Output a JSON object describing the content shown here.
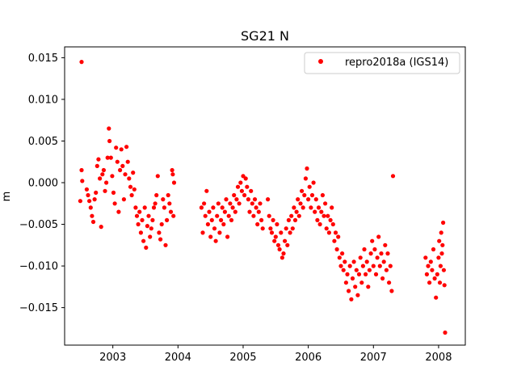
{
  "chart_data": {
    "type": "scatter",
    "title": "SG21 N",
    "xlabel": "",
    "ylabel": "m",
    "x_unit": "decimal year",
    "xlim": [
      2002.26,
      2008.41
    ],
    "ylim": [
      -0.0195,
      0.0163
    ],
    "x_ticks": [
      2003,
      2004,
      2005,
      2006,
      2007,
      2008
    ],
    "x_tick_labels": [
      "2003",
      "2004",
      "2005",
      "2006",
      "2007",
      "2008"
    ],
    "y_ticks": [
      0.015,
      0.01,
      0.005,
      0.0,
      -0.005,
      -0.01,
      -0.015
    ],
    "y_tick_labels": [
      "0.015",
      "0.010",
      "0.005",
      "0.000",
      "−0.005",
      "−0.010",
      "−0.015"
    ],
    "grid": false,
    "legend_position": "top-right",
    "series": [
      {
        "name": "repro2018a (IGS14)",
        "color": "#ff0000",
        "marker": "circle",
        "points": [
          [
            2002.52,
            0.0145
          ],
          [
            2002.5,
            -0.0022
          ],
          [
            2002.52,
            0.0015
          ],
          [
            2002.53,
            0.0002
          ],
          [
            2002.6,
            -0.0008
          ],
          [
            2002.62,
            -0.0015
          ],
          [
            2002.64,
            -0.0022
          ],
          [
            2002.66,
            -0.003
          ],
          [
            2002.68,
            -0.004
          ],
          [
            2002.7,
            -0.0047
          ],
          [
            2002.72,
            -0.002
          ],
          [
            2002.74,
            -0.0012
          ],
          [
            2002.76,
            0.002
          ],
          [
            2002.78,
            0.0028
          ],
          [
            2002.8,
            0.0005
          ],
          [
            2002.82,
            -0.0053
          ],
          [
            2002.84,
            0.001
          ],
          [
            2002.86,
            0.0015
          ],
          [
            2002.88,
            -0.001
          ],
          [
            2002.9,
            0.0
          ],
          [
            2002.92,
            0.003
          ],
          [
            2002.94,
            0.0065
          ],
          [
            2002.95,
            0.005
          ],
          [
            2002.97,
            0.003
          ],
          [
            2002.99,
            0.0008
          ],
          [
            2003.01,
            -0.0012
          ],
          [
            2003.03,
            -0.0025
          ],
          [
            2003.05,
            0.0042
          ],
          [
            2003.07,
            0.0025
          ],
          [
            2003.09,
            -0.0035
          ],
          [
            2003.11,
            0.0015
          ],
          [
            2003.13,
            0.004
          ],
          [
            2003.15,
            0.002
          ],
          [
            2003.17,
            -0.002
          ],
          [
            2003.19,
            0.001
          ],
          [
            2003.21,
            0.0043
          ],
          [
            2003.23,
            0.0025
          ],
          [
            2003.25,
            0.0005
          ],
          [
            2003.27,
            -0.0005
          ],
          [
            2003.29,
            -0.0015
          ],
          [
            2003.31,
            0.0012
          ],
          [
            2003.33,
            -0.0008
          ],
          [
            2003.35,
            -0.003
          ],
          [
            2003.37,
            -0.004
          ],
          [
            2003.39,
            -0.005
          ],
          [
            2003.41,
            -0.0035
          ],
          [
            2003.43,
            -0.006
          ],
          [
            2003.45,
            -0.0045
          ],
          [
            2003.47,
            -0.007
          ],
          [
            2003.49,
            -0.003
          ],
          [
            2003.51,
            -0.0078
          ],
          [
            2003.53,
            -0.0052
          ],
          [
            2003.55,
            -0.004
          ],
          [
            2003.57,
            -0.0065
          ],
          [
            2003.59,
            -0.0055
          ],
          [
            2003.61,
            -0.0045
          ],
          [
            2003.63,
            -0.003
          ],
          [
            2003.65,
            -0.0025
          ],
          [
            2003.67,
            -0.0015
          ],
          [
            2003.69,
            0.0008
          ],
          [
            2003.71,
            -0.006
          ],
          [
            2003.73,
            -0.0068
          ],
          [
            2003.75,
            -0.005
          ],
          [
            2003.77,
            -0.002
          ],
          [
            2003.79,
            -0.003
          ],
          [
            2003.81,
            -0.0075
          ],
          [
            2003.83,
            -0.0045
          ],
          [
            2003.85,
            -0.0015
          ],
          [
            2003.87,
            -0.0025
          ],
          [
            2003.89,
            -0.0035
          ],
          [
            2003.91,
            0.0015
          ],
          [
            2003.92,
            0.001
          ],
          [
            2003.93,
            -0.004
          ],
          [
            2003.94,
            0.0
          ],
          [
            2004.36,
            -0.003
          ],
          [
            2004.38,
            -0.006
          ],
          [
            2004.4,
            -0.0025
          ],
          [
            2004.42,
            -0.004
          ],
          [
            2004.44,
            -0.001
          ],
          [
            2004.46,
            -0.005
          ],
          [
            2004.48,
            -0.0035
          ],
          [
            2004.5,
            -0.0065
          ],
          [
            2004.52,
            -0.0045
          ],
          [
            2004.54,
            -0.003
          ],
          [
            2004.56,
            -0.0055
          ],
          [
            2004.58,
            -0.007
          ],
          [
            2004.6,
            -0.004
          ],
          [
            2004.62,
            -0.0025
          ],
          [
            2004.64,
            -0.006
          ],
          [
            2004.66,
            -0.0045
          ],
          [
            2004.68,
            -0.003
          ],
          [
            2004.7,
            -0.005
          ],
          [
            2004.72,
            -0.0035
          ],
          [
            2004.74,
            -0.002
          ],
          [
            2004.76,
            -0.0065
          ],
          [
            2004.78,
            -0.004
          ],
          [
            2004.8,
            -0.0025
          ],
          [
            2004.82,
            -0.0045
          ],
          [
            2004.84,
            -0.003
          ],
          [
            2004.86,
            -0.0015
          ],
          [
            2004.88,
            -0.0035
          ],
          [
            2004.9,
            -0.002
          ],
          [
            2004.92,
            -0.0005
          ],
          [
            2004.94,
            -0.0025
          ],
          [
            2004.96,
            0.0
          ],
          [
            2004.98,
            -0.001
          ],
          [
            2005.0,
            0.0008
          ],
          [
            2005.02,
            -0.0015
          ],
          [
            2005.04,
            0.0005
          ],
          [
            2005.06,
            -0.0005
          ],
          [
            2005.08,
            -0.002
          ],
          [
            2005.1,
            -0.0035
          ],
          [
            2005.12,
            -0.001
          ],
          [
            2005.14,
            -0.0025
          ],
          [
            2005.16,
            -0.004
          ],
          [
            2005.18,
            -0.002
          ],
          [
            2005.2,
            -0.003
          ],
          [
            2005.22,
            -0.005
          ],
          [
            2005.24,
            -0.0035
          ],
          [
            2005.26,
            -0.0025
          ],
          [
            2005.28,
            -0.0045
          ],
          [
            2005.3,
            -0.0055
          ],
          [
            2005.38,
            -0.002
          ],
          [
            2005.4,
            -0.004
          ],
          [
            2005.42,
            -0.0055
          ],
          [
            2005.44,
            -0.006
          ],
          [
            2005.46,
            -0.0045
          ],
          [
            2005.48,
            -0.007
          ],
          [
            2005.5,
            -0.0065
          ],
          [
            2005.52,
            -0.005
          ],
          [
            2005.54,
            -0.0075
          ],
          [
            2005.56,
            -0.008
          ],
          [
            2005.58,
            -0.006
          ],
          [
            2005.6,
            -0.009
          ],
          [
            2005.62,
            -0.0085
          ],
          [
            2005.64,
            -0.007
          ],
          [
            2005.66,
            -0.0055
          ],
          [
            2005.68,
            -0.0075
          ],
          [
            2005.7,
            -0.0045
          ],
          [
            2005.72,
            -0.006
          ],
          [
            2005.74,
            -0.004
          ],
          [
            2005.76,
            -0.0055
          ],
          [
            2005.78,
            -0.003
          ],
          [
            2005.8,
            -0.0045
          ],
          [
            2005.82,
            -0.0035
          ],
          [
            2005.84,
            -0.002
          ],
          [
            2005.86,
            -0.004
          ],
          [
            2005.88,
            -0.0025
          ],
          [
            2005.9,
            -0.001
          ],
          [
            2005.92,
            -0.003
          ],
          [
            2005.94,
            -0.0015
          ],
          [
            2005.96,
            0.0005
          ],
          [
            2005.98,
            0.0017
          ],
          [
            2006.0,
            -0.002
          ],
          [
            2006.02,
            -0.0005
          ],
          [
            2006.04,
            -0.003
          ],
          [
            2006.06,
            -0.0015
          ],
          [
            2006.08,
            0.0
          ],
          [
            2006.1,
            -0.0035
          ],
          [
            2006.12,
            -0.002
          ],
          [
            2006.14,
            -0.0045
          ],
          [
            2006.16,
            -0.003
          ],
          [
            2006.18,
            -0.005
          ],
          [
            2006.2,
            -0.0035
          ],
          [
            2006.22,
            -0.0015
          ],
          [
            2006.24,
            -0.004
          ],
          [
            2006.26,
            -0.0025
          ],
          [
            2006.28,
            -0.0055
          ],
          [
            2006.3,
            -0.004
          ],
          [
            2006.32,
            -0.006
          ],
          [
            2006.34,
            -0.0045
          ],
          [
            2006.36,
            -0.003
          ],
          [
            2006.38,
            -0.005
          ],
          [
            2006.4,
            -0.007
          ],
          [
            2006.42,
            -0.006
          ],
          [
            2006.44,
            -0.008
          ],
          [
            2006.46,
            -0.0065
          ],
          [
            2006.48,
            -0.009
          ],
          [
            2006.5,
            -0.01
          ],
          [
            2006.52,
            -0.0085
          ],
          [
            2006.54,
            -0.0105
          ],
          [
            2006.56,
            -0.0095
          ],
          [
            2006.58,
            -0.012
          ],
          [
            2006.6,
            -0.011
          ],
          [
            2006.62,
            -0.013
          ],
          [
            2006.64,
            -0.01
          ],
          [
            2006.66,
            -0.014
          ],
          [
            2006.68,
            -0.0115
          ],
          [
            2006.7,
            -0.0095
          ],
          [
            2006.72,
            -0.0125
          ],
          [
            2006.74,
            -0.0105
          ],
          [
            2006.76,
            -0.0135
          ],
          [
            2006.78,
            -0.011
          ],
          [
            2006.8,
            -0.009
          ],
          [
            2006.82,
            -0.012
          ],
          [
            2006.84,
            -0.01
          ],
          [
            2006.86,
            -0.008
          ],
          [
            2006.88,
            -0.011
          ],
          [
            2006.9,
            -0.0095
          ],
          [
            2006.92,
            -0.0125
          ],
          [
            2006.94,
            -0.0105
          ],
          [
            2006.96,
            -0.0085
          ],
          [
            2006.98,
            -0.007
          ],
          [
            2007.0,
            -0.01
          ],
          [
            2007.02,
            -0.008
          ],
          [
            2007.04,
            -0.011
          ],
          [
            2007.06,
            -0.009
          ],
          [
            2007.08,
            -0.0065
          ],
          [
            2007.1,
            -0.01
          ],
          [
            2007.12,
            -0.0085
          ],
          [
            2007.14,
            -0.0115
          ],
          [
            2007.16,
            -0.0095
          ],
          [
            2007.18,
            -0.0075
          ],
          [
            2007.2,
            -0.0105
          ],
          [
            2007.22,
            -0.0085
          ],
          [
            2007.24,
            -0.012
          ],
          [
            2007.26,
            -0.01
          ],
          [
            2007.28,
            -0.013
          ],
          [
            2007.3,
            0.0008
          ],
          [
            2007.8,
            -0.009
          ],
          [
            2007.82,
            -0.011
          ],
          [
            2007.84,
            -0.01
          ],
          [
            2007.86,
            -0.012
          ],
          [
            2007.88,
            -0.0095
          ],
          [
            2007.9,
            -0.0105
          ],
          [
            2007.92,
            -0.008
          ],
          [
            2007.94,
            -0.0115
          ],
          [
            2007.96,
            -0.0138
          ],
          [
            2007.98,
            -0.011
          ],
          [
            2008.0,
            -0.009
          ],
          [
            2008.01,
            -0.007
          ],
          [
            2008.02,
            -0.012
          ],
          [
            2008.03,
            -0.01
          ],
          [
            2008.04,
            -0.006
          ],
          [
            2008.05,
            -0.0085
          ],
          [
            2008.06,
            -0.0075
          ],
          [
            2008.07,
            -0.0048
          ],
          [
            2008.08,
            -0.0105
          ],
          [
            2008.09,
            -0.0123
          ],
          [
            2008.1,
            -0.018
          ]
        ]
      }
    ]
  }
}
